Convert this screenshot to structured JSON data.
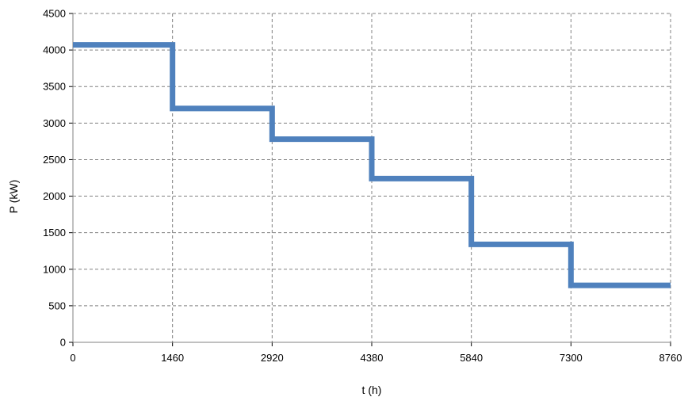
{
  "chart_data": {
    "type": "line",
    "step": true,
    "title": "",
    "xlabel": "t (h)",
    "ylabel": "P (kW)",
    "xlim": [
      0,
      8760
    ],
    "ylim": [
      0,
      4500
    ],
    "x_ticks": [
      "0",
      "1460",
      "2920",
      "4380",
      "5840",
      "7300",
      "8760"
    ],
    "y_ticks": [
      "0",
      "500",
      "1000",
      "1500",
      "2000",
      "2500",
      "3000",
      "3500",
      "4000",
      "4500"
    ],
    "grid": true,
    "grid_style": "dashed",
    "legend": "none",
    "series": [
      {
        "color": "#4f81bd",
        "x": [
          0,
          1460,
          1460,
          2920,
          2920,
          4380,
          4380,
          5840,
          5840,
          7300,
          7300,
          8760
        ],
        "y": [
          4070,
          4070,
          3200,
          3200,
          2780,
          2780,
          2240,
          2240,
          1340,
          1340,
          780,
          780
        ]
      }
    ]
  }
}
